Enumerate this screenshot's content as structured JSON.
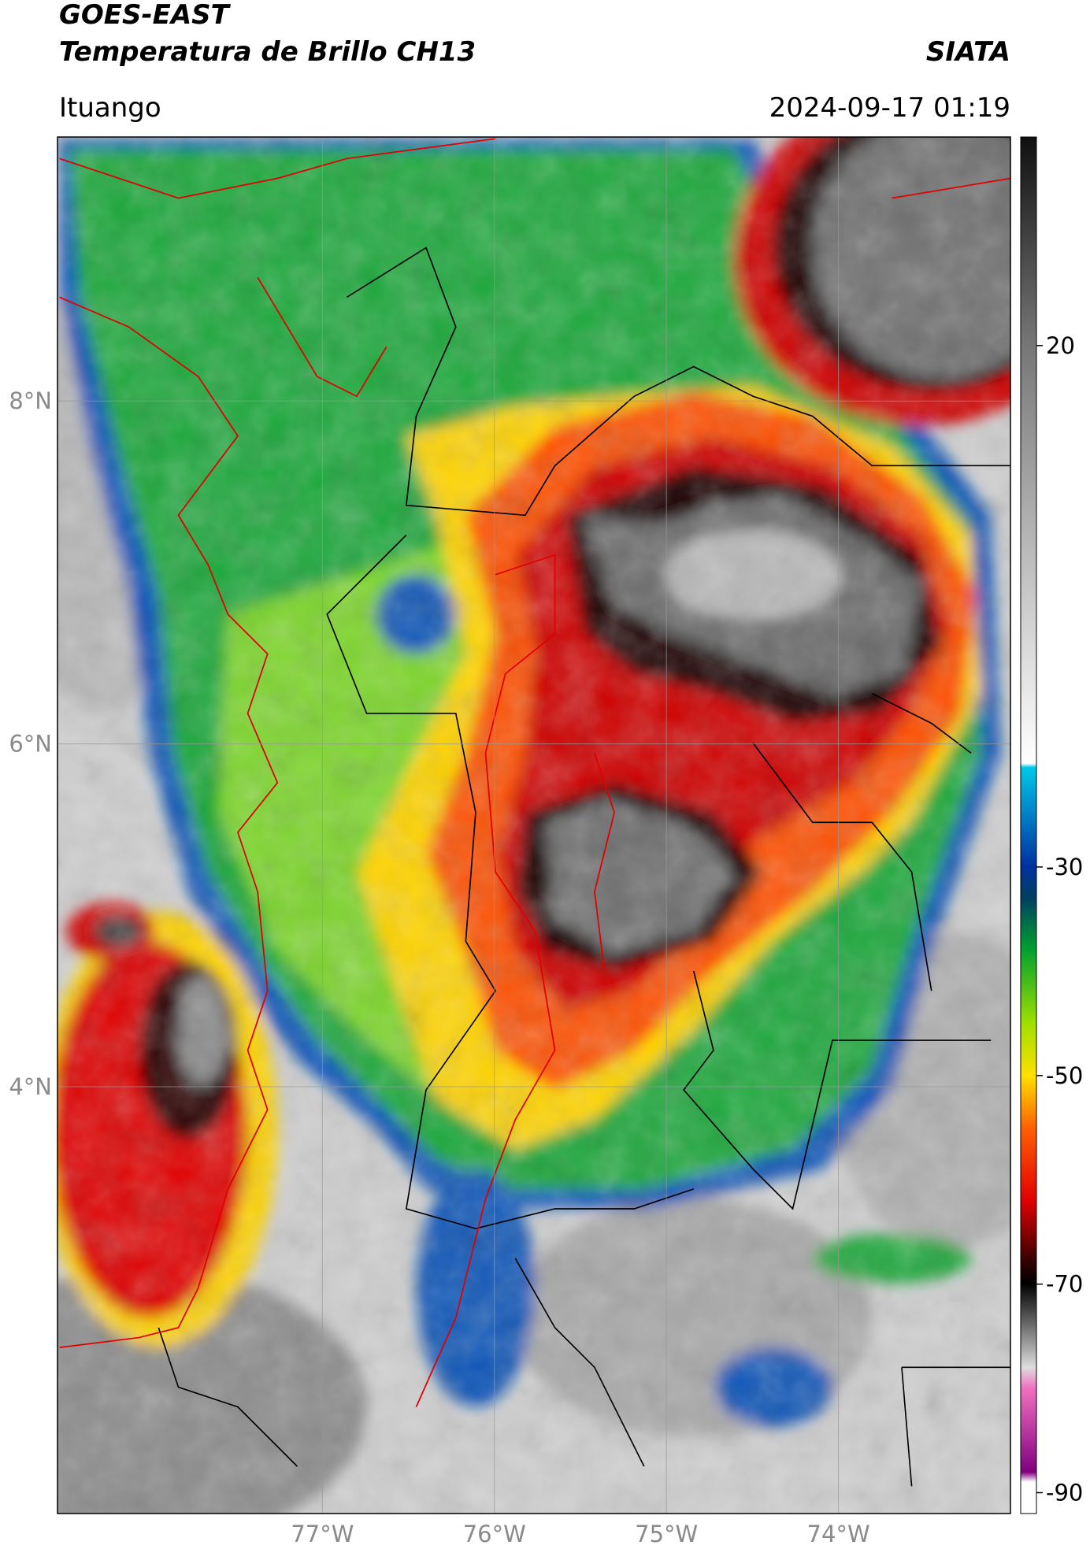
{
  "header": {
    "title": "GOES-EAST",
    "subtitle": "Temperatura de Brillo CH13",
    "source": "SIATA",
    "region": "Ituango",
    "datetime": "2024-09-17 01:19"
  },
  "map": {
    "xlim": [
      -78.54,
      -73.0
    ],
    "ylim": [
      1.51,
      9.54
    ],
    "xticks": [
      {
        "value": -77,
        "label": "77°W"
      },
      {
        "value": -76,
        "label": "76°W"
      },
      {
        "value": -75,
        "label": "75°W"
      },
      {
        "value": -74,
        "label": "74°W"
      }
    ],
    "yticks": [
      {
        "value": 4,
        "label": "4°N"
      },
      {
        "value": 6,
        "label": "6°N"
      },
      {
        "value": 8,
        "label": "8°N"
      }
    ],
    "grid": true,
    "colorbar": {
      "lim": [
        -92,
        40
      ],
      "ticks": [
        -90,
        -70,
        -50,
        -30,
        20
      ]
    }
  }
}
